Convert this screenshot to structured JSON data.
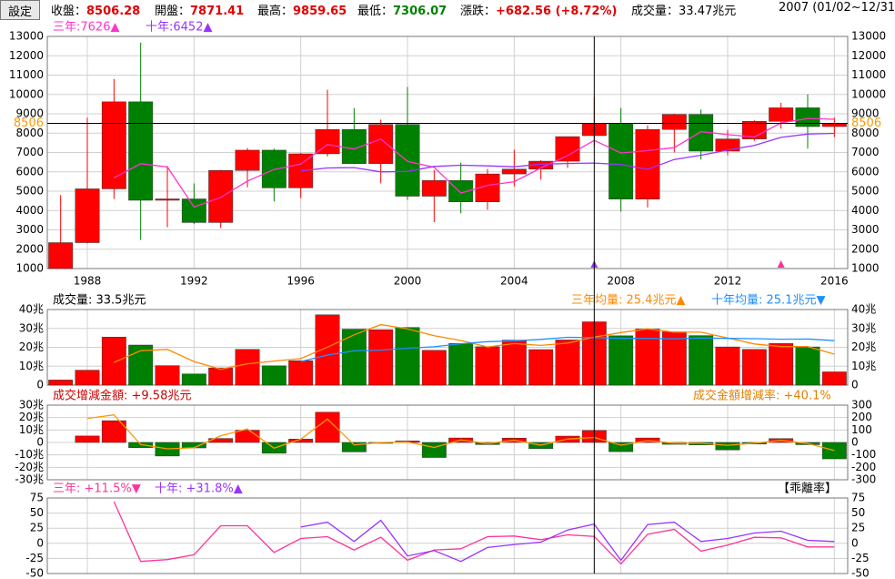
{
  "toolbar": {
    "settings_label": "設定",
    "open_label": "收盤：",
    "open_value": "8506.28",
    "prev_label": "開盤：",
    "prev_value": "7871.41",
    "high_label": "最高：",
    "high_value": "9859.65",
    "low_label": "最低：",
    "low_value": "7306.07",
    "change_label": "漲跌：",
    "change_value": "+682.56 (+8.72%)",
    "volume_label": "成交量：",
    "volume_value": "33.47兆元",
    "period": "2007 (01/02~12/31)"
  },
  "chart_data": {
    "type": "candlestick",
    "colors": {
      "up": "#ff0000",
      "down": "#008000",
      "ma3": "#ff33cc",
      "ma10": "#9933ff",
      "vol_ma3": "#ff8800",
      "vol_ma10": "#1e90ff",
      "diff_line": "#ff9900",
      "bias3": "#ff3399",
      "bias10": "#9933ff",
      "crosshair": "#000000",
      "price_label": "#ff9900"
    },
    "years": [
      1987,
      1988,
      1989,
      1990,
      1991,
      1992,
      1993,
      1994,
      1995,
      1996,
      1997,
      1998,
      1999,
      2000,
      2001,
      2002,
      2003,
      2004,
      2005,
      2006,
      2007,
      2008,
      2009,
      2010,
      2011,
      2012,
      2013,
      2014,
      2015,
      2016
    ],
    "x_ticks": [
      "1988",
      "1992",
      "1996",
      "2000",
      "2004",
      "2008",
      "2012",
      "2016"
    ],
    "price": {
      "legend": [
        {
          "label": "三年:7626",
          "marker": "▲",
          "color": "#ff33cc"
        },
        {
          "label": "十年:6452",
          "marker": "▲",
          "color": "#9933ff"
        }
      ],
      "ylim": [
        1000,
        13000
      ],
      "y_ticks": [
        1000,
        2000,
        3000,
        4000,
        5000,
        6000,
        7000,
        8000,
        9000,
        10000,
        11000,
        12000,
        13000
      ],
      "current_label": "8506",
      "current_value": 8506,
      "candles": [
        {
          "o": 1000,
          "h": 4800,
          "l": 1000,
          "c": 2340
        },
        {
          "o": 2340,
          "h": 8800,
          "l": 2300,
          "c": 5120
        },
        {
          "o": 5120,
          "h": 10800,
          "l": 4600,
          "c": 9620
        },
        {
          "o": 9620,
          "h": 12680,
          "l": 2480,
          "c": 4530
        },
        {
          "o": 4530,
          "h": 6300,
          "l": 3140,
          "c": 4600
        },
        {
          "o": 4600,
          "h": 5400,
          "l": 3300,
          "c": 3380
        },
        {
          "o": 3380,
          "h": 6100,
          "l": 3100,
          "c": 6070
        },
        {
          "o": 6070,
          "h": 7230,
          "l": 5200,
          "c": 7120
        },
        {
          "o": 7120,
          "h": 7200,
          "l": 4470,
          "c": 5170
        },
        {
          "o": 5170,
          "h": 6980,
          "l": 4640,
          "c": 6930
        },
        {
          "o": 6930,
          "h": 10250,
          "l": 6800,
          "c": 8190
        },
        {
          "o": 8190,
          "h": 9300,
          "l": 6400,
          "c": 6420
        },
        {
          "o": 6420,
          "h": 8700,
          "l": 5400,
          "c": 8450
        },
        {
          "o": 8450,
          "h": 10390,
          "l": 4550,
          "c": 4740
        },
        {
          "o": 4740,
          "h": 6100,
          "l": 3400,
          "c": 5550
        },
        {
          "o": 5550,
          "h": 6480,
          "l": 3850,
          "c": 4450
        },
        {
          "o": 4450,
          "h": 6150,
          "l": 4040,
          "c": 5890
        },
        {
          "o": 5890,
          "h": 7140,
          "l": 5250,
          "c": 6140
        },
        {
          "o": 6140,
          "h": 6600,
          "l": 5600,
          "c": 6550
        },
        {
          "o": 6550,
          "h": 7820,
          "l": 6200,
          "c": 7820
        },
        {
          "o": 7870,
          "h": 9860,
          "l": 7306,
          "c": 8506
        },
        {
          "o": 8506,
          "h": 9300,
          "l": 3950,
          "c": 4590
        },
        {
          "o": 4590,
          "h": 8400,
          "l": 4160,
          "c": 8190
        },
        {
          "o": 8190,
          "h": 9000,
          "l": 7000,
          "c": 8970
        },
        {
          "o": 8970,
          "h": 9220,
          "l": 6630,
          "c": 7070
        },
        {
          "o": 7070,
          "h": 8170,
          "l": 6860,
          "c": 7700
        },
        {
          "o": 7700,
          "h": 8660,
          "l": 7600,
          "c": 8610
        },
        {
          "o": 8610,
          "h": 9570,
          "l": 8230,
          "c": 9310
        },
        {
          "o": 9310,
          "h": 10000,
          "l": 7200,
          "c": 8340
        },
        {
          "o": 8340,
          "h": 8800,
          "l": 7800,
          "c": 8500
        }
      ],
      "ma3": [
        null,
        null,
        5690,
        6420,
        6250,
        4180,
        4680,
        5520,
        6120,
        6400,
        7410,
        7180,
        7690,
        6540,
        6240,
        4900,
        5300,
        5490,
        6200,
        6840,
        7626,
        6970,
        7100,
        7250,
        8080,
        7920,
        7800,
        8530,
        8760,
        8720
      ],
      "ma10": [
        null,
        null,
        null,
        null,
        null,
        null,
        null,
        null,
        null,
        6050,
        6200,
        6220,
        6000,
        6020,
        6280,
        6340,
        6310,
        6260,
        6400,
        6430,
        6452,
        6380,
        6130,
        6640,
        6860,
        7120,
        7360,
        7780,
        7950,
        7990
      ],
      "markers": [
        {
          "year": 2007,
          "color": "#9933ff"
        },
        {
          "year": 2014,
          "color": "#ff3399"
        }
      ]
    },
    "volume": {
      "label": "成交量: 33.5兆元",
      "ma3_label": "三年均量: 25.4兆元",
      "ma3_marker": "▲",
      "ma10_label": "十年均量: 25.1兆元",
      "ma10_marker": "▼",
      "unit": "兆",
      "ylim": [
        0,
        40
      ],
      "y_ticks": [
        0,
        10,
        20,
        30,
        40
      ],
      "values": [
        2.7,
        7.9,
        25.4,
        21.2,
        10.3,
        5.9,
        9.1,
        18.9,
        10.2,
        12.9,
        37.2,
        29.6,
        29.3,
        30.5,
        18.4,
        22.0,
        20.3,
        23.8,
        18.8,
        23.9,
        33.5,
        26.1,
        29.7,
        28.2,
        26.2,
        20.2,
        18.9,
        22.0,
        20.2,
        7.0
      ],
      "ma3": [
        null,
        null,
        12.0,
        18.2,
        18.9,
        12.5,
        8.4,
        11.3,
        12.7,
        14.0,
        20.1,
        26.6,
        32.0,
        29.8,
        26.1,
        23.6,
        20.2,
        22.0,
        21.0,
        22.2,
        25.4,
        27.8,
        29.8,
        28.0,
        28.0,
        24.9,
        21.8,
        20.4,
        20.4,
        16.4
      ],
      "ma10": [
        null,
        null,
        null,
        null,
        null,
        null,
        null,
        null,
        null,
        12.5,
        15.9,
        18.1,
        18.5,
        19.5,
        20.3,
        21.9,
        23.0,
        23.4,
        24.2,
        25.3,
        25.1,
        24.7,
        24.7,
        24.5,
        24.9,
        24.7,
        24.6,
        24.3,
        24.4,
        23.5
      ]
    },
    "diff": {
      "label": "成交增減金額: +9.58兆元",
      "rate_label": "成交金額增減率: +40.1%",
      "unit": "兆",
      "ylim": [
        -30,
        30
      ],
      "y_ticks": [
        -30,
        -20,
        -10,
        0,
        10,
        20,
        30
      ],
      "right_ylim": [
        -300,
        300
      ],
      "right_ticks": [
        -300,
        -200,
        -100,
        0,
        100,
        200,
        300
      ],
      "values": [
        null,
        5.2,
        17.5,
        -4.2,
        -10.9,
        -4.4,
        3.2,
        9.8,
        -8.7,
        2.7,
        24.3,
        -7.6,
        -0.3,
        1.2,
        -12.1,
        3.6,
        -1.7,
        3.5,
        -5.0,
        5.1,
        9.6,
        -7.4,
        3.6,
        -1.5,
        -2.0,
        -6.0,
        -1.3,
        3.1,
        -1.8,
        -13.2
      ],
      "rate": [
        null,
        193,
        222,
        -17,
        -51,
        -43,
        54,
        108,
        -46,
        26,
        188,
        -20,
        -1,
        4,
        -40,
        20,
        -8,
        17,
        -21,
        27,
        40,
        -22,
        14,
        -5,
        -7,
        -23,
        -6,
        16,
        -8,
        -65
      ]
    },
    "bias": {
      "label3": "三年: +11.5%",
      "marker3": "▼",
      "label10": "十年: +31.8%",
      "marker10": "▲",
      "tag": "【乖離率】",
      "ylim": [
        -50,
        75
      ],
      "y_ticks": [
        -50,
        -25,
        0,
        25,
        50,
        75
      ],
      "bias3": [
        null,
        null,
        69,
        -30,
        -27,
        -19,
        29,
        29,
        -15,
        8,
        11,
        -11,
        10,
        -28,
        -11,
        -9,
        11,
        12,
        6,
        14,
        11.5,
        -34,
        15,
        23,
        -13,
        -3,
        10,
        9,
        -6,
        -6
      ],
      "bias10": [
        null,
        null,
        null,
        null,
        null,
        null,
        null,
        null,
        null,
        27,
        35,
        3,
        38,
        -21,
        -12,
        -30,
        -7,
        -2,
        2,
        22,
        31.8,
        -28,
        31,
        35,
        3,
        8,
        17,
        20,
        5,
        3
      ]
    }
  }
}
